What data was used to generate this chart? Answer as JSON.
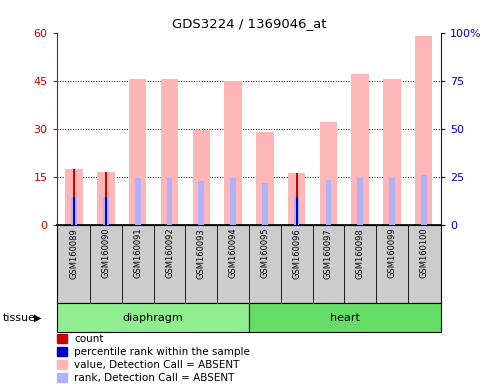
{
  "title": "GDS3224 / 1369046_at",
  "samples": [
    "GSM160089",
    "GSM160090",
    "GSM160091",
    "GSM160092",
    "GSM160093",
    "GSM160094",
    "GSM160095",
    "GSM160096",
    "GSM160097",
    "GSM160098",
    "GSM160099",
    "GSM160100"
  ],
  "pink_bar_values": [
    17.5,
    16.5,
    45.5,
    45.5,
    29.5,
    45.0,
    29.0,
    16.0,
    32.0,
    47.0,
    45.5,
    59.0
  ],
  "blue_bar_values": [
    8.5,
    8.5,
    14.5,
    14.5,
    13.5,
    14.5,
    13.0,
    8.5,
    14.0,
    14.5,
    14.5,
    15.5
  ],
  "dark_red_bar_values": [
    17.5,
    16.5,
    0,
    0,
    0,
    0,
    0,
    16.0,
    0,
    0,
    0,
    0
  ],
  "dark_blue_bar_values": [
    8.5,
    8.5,
    0,
    0,
    0,
    0,
    0,
    8.5,
    0,
    0,
    0,
    0
  ],
  "tissue_groups": [
    {
      "label": "diaphragm",
      "start": 0,
      "end": 6,
      "color": "#90ee90"
    },
    {
      "label": "heart",
      "start": 6,
      "end": 12,
      "color": "#66dd66"
    }
  ],
  "ylim_left": [
    0,
    60
  ],
  "ylim_right": [
    0,
    100
  ],
  "yticks_left": [
    0,
    15,
    30,
    45,
    60
  ],
  "yticks_right": [
    0,
    25,
    50,
    75,
    100
  ],
  "ytick_labels_right": [
    "0",
    "25",
    "50",
    "75",
    "100%"
  ],
  "left_axis_color": "#cc0000",
  "right_axis_color": "#0000cc",
  "bar_pink_color": "#ffb6b6",
  "bar_blue_color": "#b0b0ff",
  "bar_darkred_color": "#cc0000",
  "bar_darkblue_color": "#0000cc",
  "legend_items": [
    {
      "color": "#cc0000",
      "label": "count"
    },
    {
      "color": "#0000cc",
      "label": "percentile rank within the sample"
    },
    {
      "color": "#ffb6b6",
      "label": "value, Detection Call = ABSENT"
    },
    {
      "color": "#b0b0ff",
      "label": "rank, Detection Call = ABSENT"
    }
  ],
  "tissue_label": "tissue",
  "background_color": "#ffffff",
  "xticklabel_area_color": "#cccccc"
}
